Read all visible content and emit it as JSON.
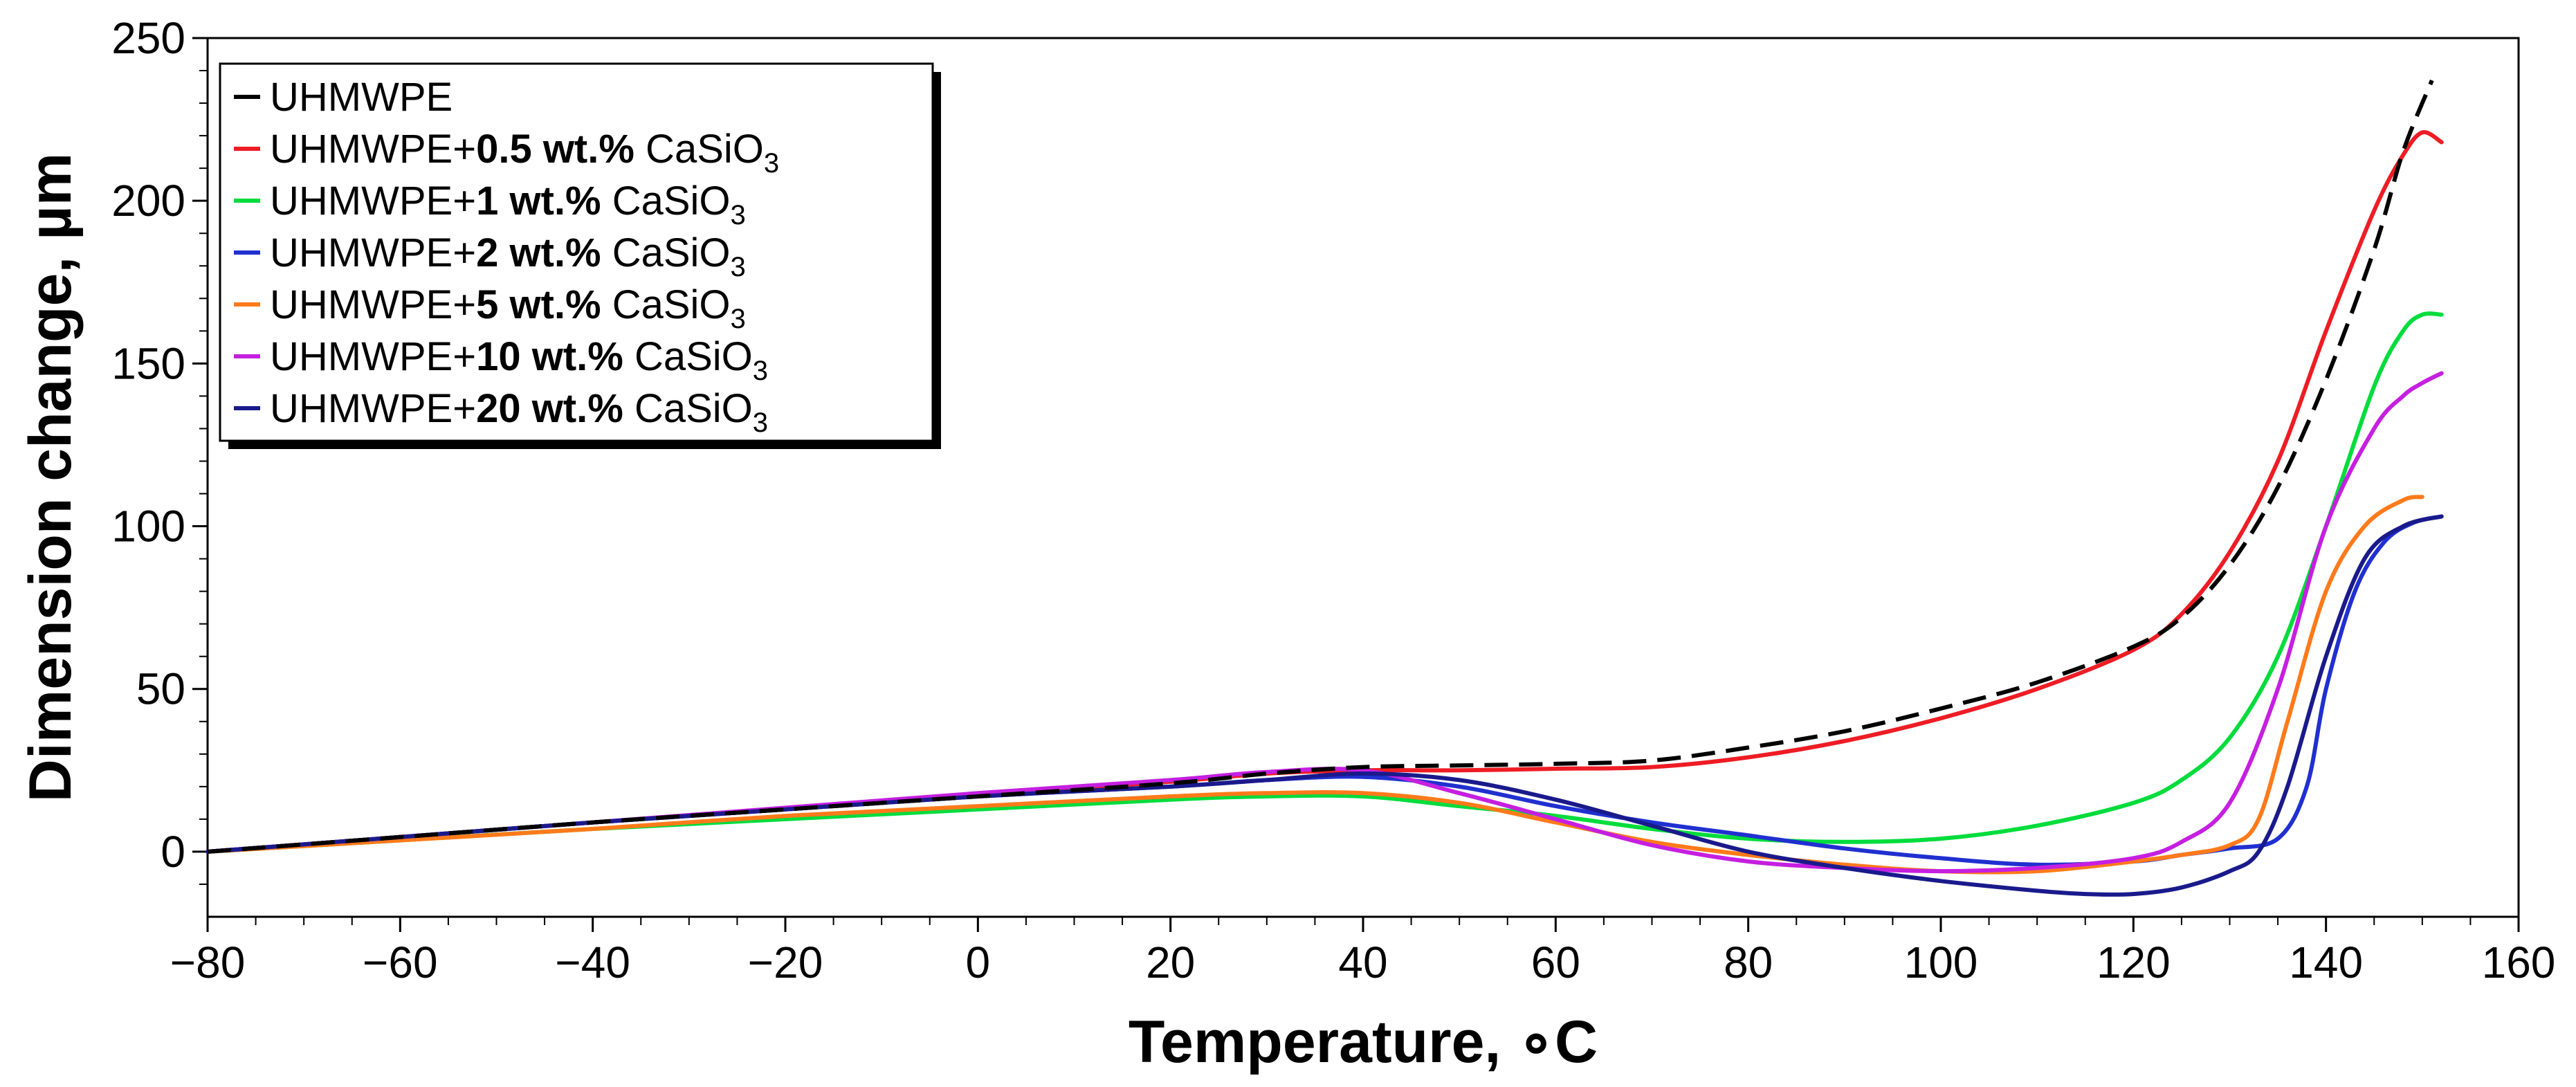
{
  "chart_data": {
    "type": "line",
    "xlabel": "Temperature, ∘C",
    "ylabel": "Dimension change, µm",
    "xlim": [
      -80,
      160
    ],
    "ylim": [
      -20,
      250
    ],
    "x_ticks": [
      -80,
      -60,
      -40,
      -20,
      0,
      20,
      40,
      60,
      80,
      100,
      120,
      140,
      160
    ],
    "y_ticks": [
      0,
      50,
      100,
      150,
      200,
      250
    ],
    "x_tick_labels": [
      "−80",
      "−60",
      "−40",
      "−20",
      "0",
      "20",
      "40",
      "60",
      "80",
      "100",
      "120",
      "140",
      "160"
    ],
    "y_tick_labels": [
      "0",
      "50",
      "100",
      "150",
      "200",
      "250"
    ],
    "grid": false,
    "legend_position": "top-left",
    "series": [
      {
        "name": "UHMWPE",
        "label_prefix": "UHMWPE",
        "label_bold": "",
        "label_suffix": "",
        "label_sub": "",
        "color": "#000000",
        "dashed": true,
        "points": [
          [
            -80,
            0
          ],
          [
            -60,
            4.5
          ],
          [
            -40,
            9
          ],
          [
            -20,
            13
          ],
          [
            0,
            17
          ],
          [
            20,
            21
          ],
          [
            30,
            24
          ],
          [
            40,
            26
          ],
          [
            50,
            26.5
          ],
          [
            60,
            27
          ],
          [
            70,
            28
          ],
          [
            80,
            32
          ],
          [
            90,
            37
          ],
          [
            100,
            44
          ],
          [
            110,
            52
          ],
          [
            120,
            63
          ],
          [
            125,
            72
          ],
          [
            130,
            88
          ],
          [
            135,
            112
          ],
          [
            140,
            145
          ],
          [
            145,
            185
          ],
          [
            148,
            215
          ],
          [
            151,
            237
          ]
        ]
      },
      {
        "name": "UHMWPE+0.5 wt.% CaSiO3",
        "label_prefix": "UHMWPE+",
        "label_bold": "0.5 wt.%",
        "label_suffix": " CaSiO",
        "label_sub": "3",
        "color": "#ee1c24",
        "dashed": false,
        "points": [
          [
            -80,
            0
          ],
          [
            -60,
            4.5
          ],
          [
            -40,
            9
          ],
          [
            -20,
            13
          ],
          [
            0,
            17.5
          ],
          [
            20,
            21.5
          ],
          [
            30,
            24
          ],
          [
            40,
            25
          ],
          [
            50,
            25
          ],
          [
            60,
            25.5
          ],
          [
            70,
            26
          ],
          [
            80,
            29
          ],
          [
            90,
            34
          ],
          [
            100,
            41
          ],
          [
            110,
            50
          ],
          [
            120,
            62
          ],
          [
            125,
            73
          ],
          [
            130,
            92
          ],
          [
            135,
            120
          ],
          [
            140,
            160
          ],
          [
            145,
            197
          ],
          [
            148,
            214
          ],
          [
            150,
            221
          ],
          [
            152,
            218
          ]
        ]
      },
      {
        "name": "UHMWPE+1 wt.% CaSiO3",
        "label_prefix": "UHMWPE+",
        "label_bold": "1 wt.%",
        "label_suffix": " CaSiO",
        "label_sub": "3",
        "color": "#00dc3c",
        "dashed": false,
        "points": [
          [
            -80,
            0
          ],
          [
            -60,
            3.5
          ],
          [
            -40,
            7
          ],
          [
            -20,
            10
          ],
          [
            0,
            13
          ],
          [
            20,
            16
          ],
          [
            30,
            17
          ],
          [
            40,
            17
          ],
          [
            50,
            14
          ],
          [
            60,
            11
          ],
          [
            70,
            7
          ],
          [
            80,
            4
          ],
          [
            90,
            3
          ],
          [
            100,
            4
          ],
          [
            110,
            8
          ],
          [
            120,
            15
          ],
          [
            125,
            22
          ],
          [
            130,
            35
          ],
          [
            135,
            60
          ],
          [
            140,
            100
          ],
          [
            145,
            143
          ],
          [
            148,
            160
          ],
          [
            150,
            165
          ],
          [
            152,
            165
          ]
        ]
      },
      {
        "name": "UHMWPE+2 wt.% CaSiO3",
        "label_prefix": "UHMWPE+",
        "label_bold": "2 wt.%",
        "label_suffix": " CaSiO",
        "label_sub": "3",
        "color": "#2030d0",
        "dashed": false,
        "points": [
          [
            -80,
            0
          ],
          [
            -60,
            4.5
          ],
          [
            -40,
            9
          ],
          [
            -20,
            13
          ],
          [
            0,
            17
          ],
          [
            20,
            20
          ],
          [
            30,
            22
          ],
          [
            40,
            23
          ],
          [
            50,
            20
          ],
          [
            60,
            14
          ],
          [
            70,
            9
          ],
          [
            80,
            5
          ],
          [
            90,
            1
          ],
          [
            100,
            -2
          ],
          [
            110,
            -4
          ],
          [
            120,
            -3
          ],
          [
            125,
            -1
          ],
          [
            130,
            1
          ],
          [
            135,
            4
          ],
          [
            138,
            20
          ],
          [
            140,
            50
          ],
          [
            143,
            80
          ],
          [
            146,
            95
          ],
          [
            149,
            101
          ],
          [
            152,
            103
          ]
        ]
      },
      {
        "name": "UHMWPE+5 wt.% CaSiO3",
        "label_prefix": "UHMWPE+",
        "label_bold": "5 wt.%",
        "label_suffix": " CaSiO",
        "label_sub": "3",
        "color": "#ff7a1a",
        "dashed": false,
        "points": [
          [
            -80,
            0
          ],
          [
            -60,
            3.5
          ],
          [
            -40,
            7
          ],
          [
            -20,
            11
          ],
          [
            0,
            14
          ],
          [
            20,
            17
          ],
          [
            30,
            18
          ],
          [
            40,
            18
          ],
          [
            50,
            15
          ],
          [
            60,
            9
          ],
          [
            70,
            3
          ],
          [
            80,
            -1
          ],
          [
            90,
            -4
          ],
          [
            100,
            -6
          ],
          [
            110,
            -6
          ],
          [
            120,
            -3
          ],
          [
            125,
            -1
          ],
          [
            130,
            2
          ],
          [
            133,
            10
          ],
          [
            136,
            40
          ],
          [
            140,
            80
          ],
          [
            144,
            100
          ],
          [
            148,
            108
          ],
          [
            150,
            109
          ]
        ]
      },
      {
        "name": "UHMWPE+10 wt.% CaSiO3",
        "label_prefix": "UHMWPE+",
        "label_bold": "10 wt.%",
        "label_suffix": " CaSiO",
        "label_sub": "3",
        "color": "#c51fe0",
        "dashed": false,
        "points": [
          [
            -80,
            0
          ],
          [
            -60,
            4.5
          ],
          [
            -40,
            9
          ],
          [
            -20,
            13.5
          ],
          [
            0,
            18
          ],
          [
            20,
            22
          ],
          [
            30,
            24.5
          ],
          [
            40,
            25
          ],
          [
            50,
            18
          ],
          [
            60,
            10
          ],
          [
            70,
            2
          ],
          [
            80,
            -3
          ],
          [
            90,
            -5
          ],
          [
            100,
            -6
          ],
          [
            110,
            -5
          ],
          [
            120,
            -2
          ],
          [
            125,
            3
          ],
          [
            130,
            15
          ],
          [
            135,
            50
          ],
          [
            140,
            100
          ],
          [
            145,
            130
          ],
          [
            148,
            140
          ],
          [
            150,
            144
          ],
          [
            152,
            147
          ]
        ]
      },
      {
        "name": "UHMWPE+20 wt.% CaSiO3",
        "label_prefix": "UHMWPE+",
        "label_bold": "20 wt.%",
        "label_suffix": " CaSiO",
        "label_sub": "3",
        "color": "#1a1a8c",
        "dashed": false,
        "points": [
          [
            -80,
            0
          ],
          [
            -60,
            4.5
          ],
          [
            -40,
            9
          ],
          [
            -20,
            13
          ],
          [
            0,
            17
          ],
          [
            20,
            20
          ],
          [
            30,
            22
          ],
          [
            40,
            24
          ],
          [
            50,
            22
          ],
          [
            60,
            16
          ],
          [
            70,
            8
          ],
          [
            80,
            0
          ],
          [
            90,
            -5
          ],
          [
            100,
            -9
          ],
          [
            110,
            -12
          ],
          [
            115,
            -13
          ],
          [
            120,
            -13
          ],
          [
            125,
            -11
          ],
          [
            130,
            -6
          ],
          [
            133,
            0
          ],
          [
            136,
            20
          ],
          [
            140,
            60
          ],
          [
            144,
            90
          ],
          [
            148,
            100
          ],
          [
            152,
            103
          ]
        ]
      }
    ]
  }
}
